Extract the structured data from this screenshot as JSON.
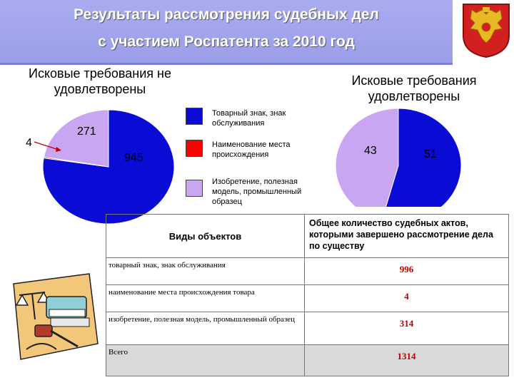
{
  "title": {
    "line1": "Результаты рассмотрения судебных дел",
    "line2": "с участием Роспатента за 2010 год"
  },
  "colors": {
    "trademark": "#0b0bd6",
    "origin": "#ff0000",
    "invention": "#c9a6f2",
    "header_bar": "#a3a6ee",
    "table_values": "#c00000"
  },
  "chart_data": [
    {
      "type": "pie",
      "title": "Исковые требования не удовлетворены",
      "labels": [
        "Товарный знак, знак обслуживания",
        "Наименование места происхождения",
        "Изобретение, полезная модель, промышленный образец"
      ],
      "values": [
        945,
        4,
        271
      ],
      "colors": [
        "#0b0bd6",
        "#ff0000",
        "#c9a6f2"
      ]
    },
    {
      "type": "pie",
      "title": "Исковые требования удовлетворены",
      "labels": [
        "Товарный знак, знак обслуживания",
        "Изобретение, полезная модель, промышленный образец"
      ],
      "values": [
        51,
        43
      ],
      "colors": [
        "#0b0bd6",
        "#c9a6f2"
      ]
    }
  ],
  "legend": [
    {
      "label": "Товарный знак, знак обслуживания",
      "color": "#0b0bd6"
    },
    {
      "label": "Наименование места происхождения",
      "color": "#ff0000"
    },
    {
      "label": "Изобретение, полезная модель, промышленный образец",
      "color": "#c9a6f2"
    }
  ],
  "table": {
    "header_left": "Виды объектов",
    "header_right": "Общее количество судебных актов, которыми завершено рассмотрение дела по существу",
    "rows": [
      {
        "label": "товарный знак, знак обслуживания",
        "value": "996"
      },
      {
        "label": "наименование места происхождения товара",
        "value": "4"
      },
      {
        "label": "изобретение, полезная модель, промышленный образец",
        "value": "314"
      },
      {
        "label": "Всего",
        "value": "1314"
      }
    ]
  }
}
